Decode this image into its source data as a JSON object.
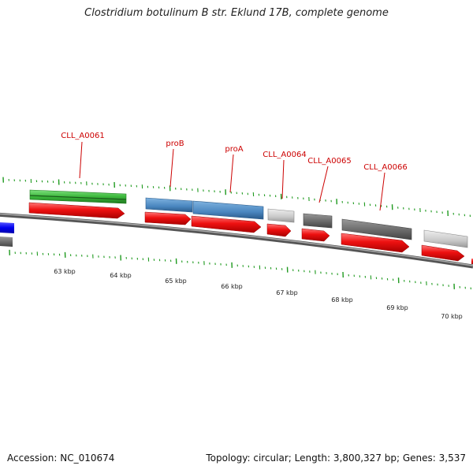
{
  "title": "Clostridium botulinum B str. Eklund 17B, complete genome",
  "accession_text": "Accession: NC_010674",
  "summary_text": "Topology: circular; Length: 3,800,327 bp; Genes: 3,537",
  "kbp_labels": [
    "63 kbp",
    "64 kbp",
    "65 kbp",
    "66 kbp",
    "67 kbp",
    "68 kbp",
    "69 kbp",
    "70 kbp"
  ],
  "gene_labels": [
    {
      "name": "CLL_A0061",
      "color": "#cc0000"
    },
    {
      "name": "proB",
      "color": "#cc0000"
    },
    {
      "name": "proA",
      "color": "#cc0000"
    },
    {
      "name": "CLL_A0064",
      "color": "#cc0000"
    },
    {
      "name": "CLL_A0065",
      "color": "#cc0000"
    },
    {
      "name": "CLL_A0066",
      "color": "#cc0000"
    }
  ],
  "colors": {
    "backbone": "#808080",
    "tick": "#1f9a1f",
    "cds_arrow": "#ee1111",
    "green_feature": "#3cb83c",
    "blue_feature": "#4a86bf",
    "dark_gray_feature": "#6e6e6e",
    "light_gray_feature": "#c8c8c8",
    "pure_blue_feature": "#0000ee"
  }
}
